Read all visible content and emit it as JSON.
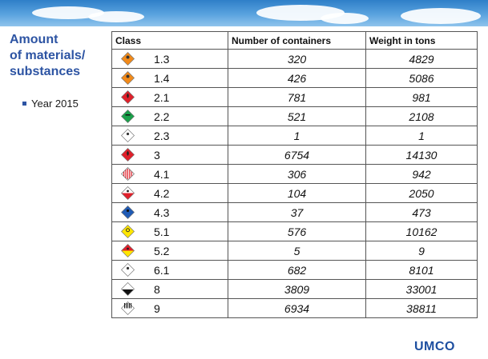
{
  "title": {
    "line1": "Amount",
    "line2": "of materials/",
    "line3": "substances"
  },
  "bullet": {
    "text": "Year 2015"
  },
  "table": {
    "headers": [
      "Class",
      "Number of containers",
      "Weight in tons"
    ],
    "rows": [
      {
        "cls": "1.3",
        "containers": "320",
        "weight": "4829",
        "icon": "explosive-orange-icon"
      },
      {
        "cls": "1.4",
        "containers": "426",
        "weight": "5086",
        "icon": "explosive-orange-icon"
      },
      {
        "cls": "2.1",
        "containers": "781",
        "weight": "981",
        "icon": "flammable-gas-red-icon"
      },
      {
        "cls": "2.2",
        "containers": "521",
        "weight": "2108",
        "icon": "non-flammable-gas-green-icon"
      },
      {
        "cls": "2.3",
        "containers": "1",
        "weight": "1",
        "icon": "toxic-gas-white-icon"
      },
      {
        "cls": "3",
        "containers": "6754",
        "weight": "14130",
        "icon": "flammable-liquid-red-icon"
      },
      {
        "cls": "4.1",
        "containers": "306",
        "weight": "942",
        "icon": "flammable-solid-striped-icon"
      },
      {
        "cls": "4.2",
        "containers": "104",
        "weight": "2050",
        "icon": "spontaneously-combustible-icon"
      },
      {
        "cls": "4.3",
        "containers": "37",
        "weight": "473",
        "icon": "dangerous-when-wet-blue-icon"
      },
      {
        "cls": "5.1",
        "containers": "576",
        "weight": "10162",
        "icon": "oxidizer-yellow-icon"
      },
      {
        "cls": "5.2",
        "containers": "5",
        "weight": "9",
        "icon": "organic-peroxide-red-yellow-icon"
      },
      {
        "cls": "6.1",
        "containers": "682",
        "weight": "8101",
        "icon": "toxic-white-icon"
      },
      {
        "cls": "8",
        "containers": "3809",
        "weight": "33001",
        "icon": "corrosive-black-white-icon"
      },
      {
        "cls": "9",
        "containers": "6934",
        "weight": "38811",
        "icon": "miscellaneous-striped-icon"
      }
    ]
  },
  "logo": {
    "text": "UMCO"
  },
  "colors": {
    "title": "#2d54a3",
    "logo": "#1e4fa0"
  }
}
